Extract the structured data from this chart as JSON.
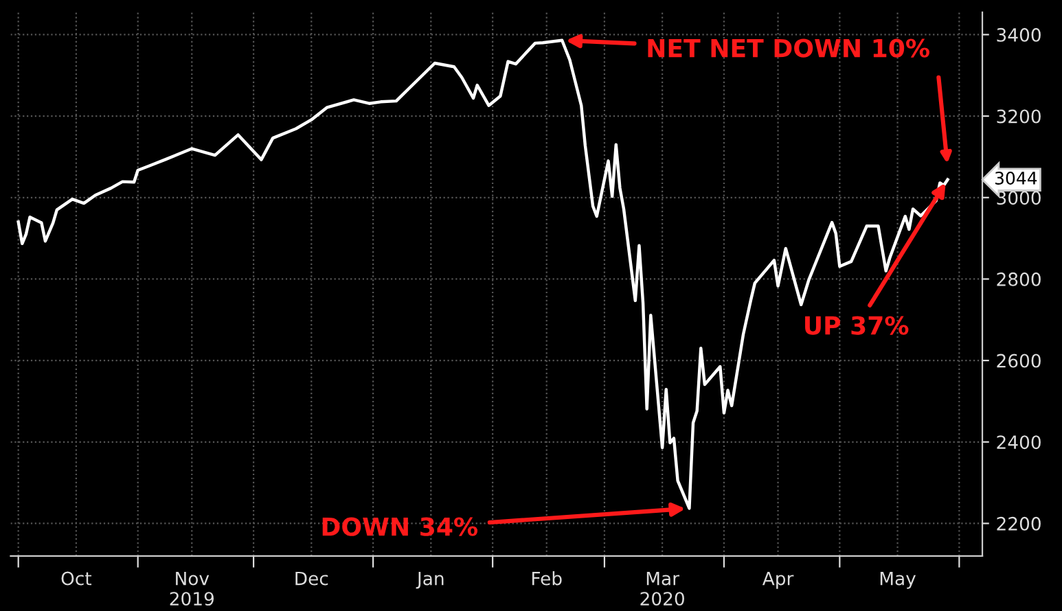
{
  "chart_data": {
    "type": "line",
    "x": [
      "2019-10-01",
      "2019-10-02",
      "2019-10-03",
      "2019-10-04",
      "2019-10-07",
      "2019-10-08",
      "2019-10-10",
      "2019-10-11",
      "2019-10-15",
      "2019-10-18",
      "2019-10-21",
      "2019-10-25",
      "2019-10-28",
      "2019-10-31",
      "2019-11-01",
      "2019-11-04",
      "2019-11-08",
      "2019-11-15",
      "2019-11-21",
      "2019-11-27",
      "2019-12-03",
      "2019-12-06",
      "2019-12-12",
      "2019-12-16",
      "2019-12-20",
      "2019-12-27",
      "2019-12-31",
      "2020-01-03",
      "2020-01-07",
      "2020-01-10",
      "2020-01-17",
      "2020-01-22",
      "2020-01-24",
      "2020-01-27",
      "2020-01-28",
      "2020-01-31",
      "2020-02-03",
      "2020-02-05",
      "2020-02-07",
      "2020-02-12",
      "2020-02-14",
      "2020-02-19",
      "2020-02-21",
      "2020-02-24",
      "2020-02-25",
      "2020-02-27",
      "2020-02-28",
      "2020-03-02",
      "2020-03-03",
      "2020-03-04",
      "2020-03-05",
      "2020-03-06",
      "2020-03-09",
      "2020-03-10",
      "2020-03-11",
      "2020-03-12",
      "2020-03-13",
      "2020-03-16",
      "2020-03-17",
      "2020-03-18",
      "2020-03-19",
      "2020-03-20",
      "2020-03-23",
      "2020-03-24",
      "2020-03-25",
      "2020-03-26",
      "2020-03-27",
      "2020-03-31",
      "2020-04-01",
      "2020-04-02",
      "2020-04-03",
      "2020-04-06",
      "2020-04-08",
      "2020-04-09",
      "2020-04-14",
      "2020-04-15",
      "2020-04-17",
      "2020-04-21",
      "2020-04-23",
      "2020-04-29",
      "2020-04-30",
      "2020-05-01",
      "2020-05-04",
      "2020-05-08",
      "2020-05-11",
      "2020-05-13",
      "2020-05-14",
      "2020-05-18",
      "2020-05-19",
      "2020-05-20",
      "2020-05-22",
      "2020-05-26",
      "2020-05-27",
      "2020-05-28",
      "2020-05-29"
    ],
    "series": [
      {
        "color": "#ffffff",
        "values": [
          2940,
          2887,
          2910,
          2952,
          2938,
          2893,
          2938,
          2970,
          2996,
          2986,
          3006,
          3023,
          3039,
          3038,
          3067,
          3078,
          3093,
          3120,
          3104,
          3154,
          3093,
          3146,
          3169,
          3191,
          3221,
          3240,
          3231,
          3235,
          3237,
          3265,
          3330,
          3321,
          3295,
          3244,
          3276,
          3226,
          3249,
          3334,
          3328,
          3379,
          3380,
          3386,
          3338,
          3226,
          3128,
          2979,
          2954,
          3090,
          3003,
          3130,
          3024,
          2972,
          2747,
          2882,
          2741,
          2481,
          2711,
          2386,
          2529,
          2398,
          2409,
          2305,
          2237,
          2447,
          2476,
          2630,
          2541,
          2585,
          2471,
          2527,
          2489,
          2664,
          2750,
          2790,
          2846,
          2783,
          2875,
          2737,
          2798,
          2939,
          2912,
          2831,
          2843,
          2930,
          2930,
          2820,
          2852,
          2954,
          2922,
          2972,
          2955,
          2992,
          3036,
          3030,
          3044
        ]
      }
    ],
    "xlim": [
      "2019-09-29",
      "2020-06-07"
    ],
    "xticks": [
      {
        "value": "2019-10-01",
        "label": null
      },
      {
        "value": "2019-10-16",
        "label": "Oct"
      },
      {
        "value": "2019-11-01",
        "label": null
      },
      {
        "value": "2019-11-15",
        "label": "Nov\n2019"
      },
      {
        "value": "2019-12-01",
        "label": null
      },
      {
        "value": "2019-12-16",
        "label": "Dec"
      },
      {
        "value": "2020-01-01",
        "label": null
      },
      {
        "value": "2020-01-16",
        "label": "Jan"
      },
      {
        "value": "2020-02-01",
        "label": null
      },
      {
        "value": "2020-02-15",
        "label": "Feb"
      },
      {
        "value": "2020-03-01",
        "label": null
      },
      {
        "value": "2020-03-16",
        "label": "Mar\n2020"
      },
      {
        "value": "2020-04-01",
        "label": null
      },
      {
        "value": "2020-04-15",
        "label": "Apr"
      },
      {
        "value": "2020-05-01",
        "label": null
      },
      {
        "value": "2020-05-16",
        "label": "May"
      },
      {
        "value": "2020-06-01",
        "label": null
      }
    ],
    "ylim": [
      2120,
      3455
    ],
    "yticks": [
      2200,
      2400,
      2600,
      2800,
      3000,
      3200,
      3400
    ],
    "grid": true,
    "legend": false,
    "line_style": "solid",
    "annotations": [
      {
        "text": "NET NET DOWN 10%",
        "x": "2020-02-19",
        "y": 3386
      },
      {
        "text": "DOWN 34%",
        "x": "2020-03-23",
        "y": 2237
      },
      {
        "text": "UP 37%",
        "x": "2020-05-29",
        "y": 3044
      },
      {
        "text": "3044",
        "x": "2020-05-29",
        "y": 3044
      }
    ]
  }
}
